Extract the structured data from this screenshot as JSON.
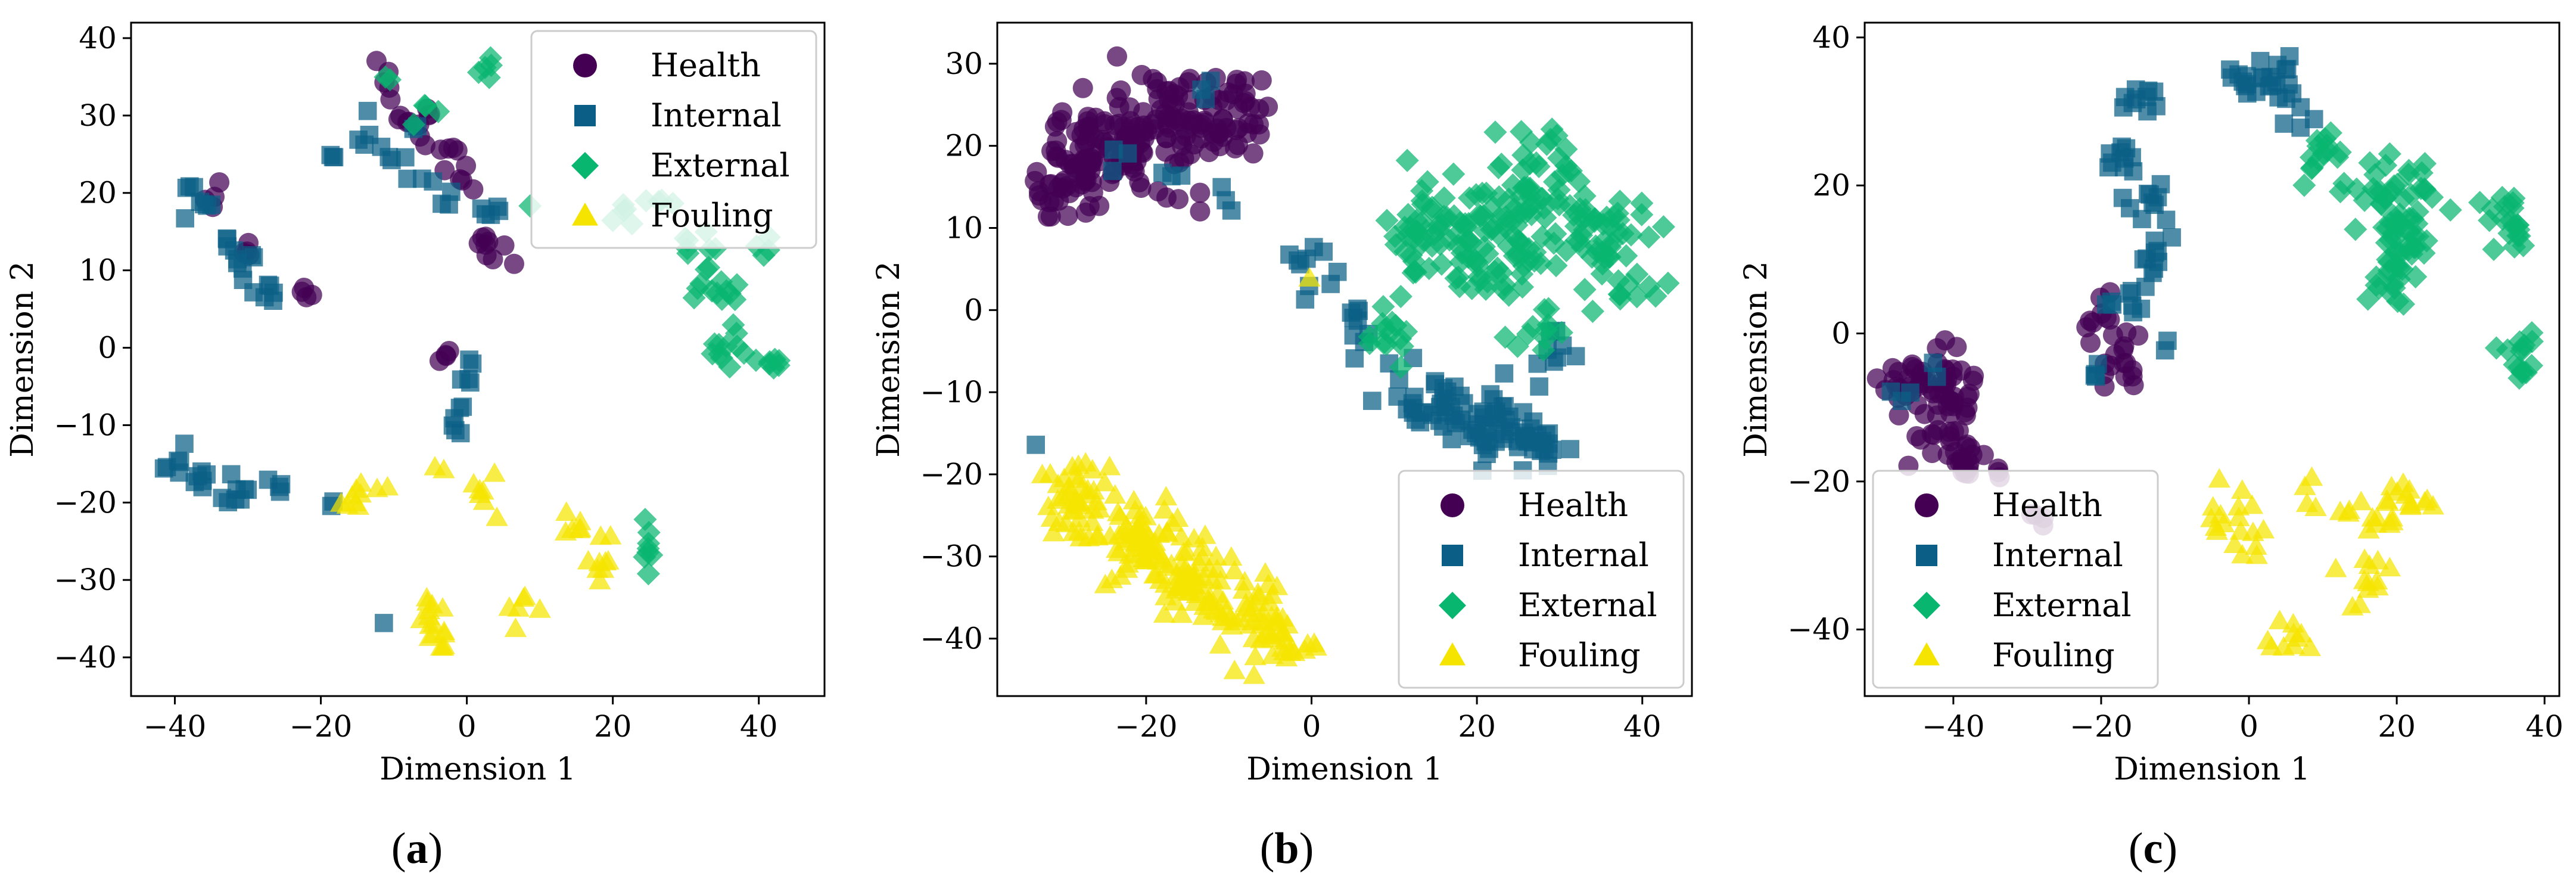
{
  "colors": {
    "Health": "#440154",
    "Internal": "#0b5f86",
    "External": "#08b670",
    "Fouling": "#f5e400"
  },
  "chart_data": [
    {
      "type": "scatter",
      "caption": {
        "open": "(",
        "letter": "a",
        "close": ")"
      },
      "xlabel": "Dimension 1",
      "ylabel": "Dimension 2",
      "xlim": [
        -46,
        49
      ],
      "ylim": [
        -45,
        42
      ],
      "xticks": [
        -40,
        -20,
        0,
        20,
        40
      ],
      "yticks": [
        -40,
        -30,
        -20,
        -10,
        0,
        10,
        20,
        30,
        40
      ],
      "legend": {
        "position": "top-right",
        "entries": [
          "Health",
          "Internal",
          "External",
          "Fouling"
        ]
      },
      "series": [
        {
          "name": "Health",
          "marker": "circle",
          "clusters": [
            [
              -35,
              20,
              0.9,
              1.0,
              4,
              2
            ],
            [
              -30,
              13,
              1.2,
              1.0,
              4,
              3
            ],
            [
              -22,
              7,
              1.2,
              0.8,
              4,
              4
            ],
            [
              -12,
              33,
              1.2,
              1.5,
              5,
              5
            ],
            [
              -7,
              29,
              1.5,
              1.5,
              10,
              6
            ],
            [
              -3,
              26,
              1.2,
              1.5,
              5,
              7
            ],
            [
              0,
              22,
              1.0,
              1.0,
              4,
              8
            ],
            [
              2,
              14,
              1.0,
              1.0,
              5,
              9
            ],
            [
              4,
              11,
              1.2,
              1.0,
              4,
              10
            ],
            [
              -3,
              -1,
              0.8,
              0.6,
              4,
              11
            ]
          ]
        },
        {
          "name": "Internal",
          "marker": "square",
          "clusters": [
            [
              -37,
              19,
              1.3,
              1.2,
              8,
              21
            ],
            [
              -33,
              14,
              1.0,
              1.0,
              4,
              22
            ],
            [
              -30,
              10,
              1.0,
              1.0,
              6,
              23
            ],
            [
              -27,
              7,
              1.0,
              1.0,
              6,
              24
            ],
            [
              -18,
              24,
              0.8,
              0.8,
              3,
              25
            ],
            [
              -14,
              27,
              1.0,
              1.2,
              5,
              26
            ],
            [
              -8,
              26,
              1.2,
              2.0,
              6,
              27
            ],
            [
              -3,
              22,
              1.2,
              1.5,
              5,
              28
            ],
            [
              3,
              18,
              1.0,
              1.0,
              5,
              29
            ],
            [
              0,
              -3,
              0.6,
              1.5,
              5,
              30
            ],
            [
              -1,
              -9,
              0.6,
              1.5,
              6,
              31
            ],
            [
              -40,
              -15,
              1.0,
              1.0,
              6,
              32
            ],
            [
              -36,
              -18,
              1.2,
              1.2,
              6,
              33
            ],
            [
              -31,
              -19,
              1.5,
              1.2,
              8,
              34
            ],
            [
              -26,
              -18,
              1.0,
              1.2,
              4,
              35
            ],
            [
              -18,
              -20,
              0.5,
              0.5,
              2,
              36
            ],
            [
              -11,
              -35,
              0.3,
              0.3,
              1,
              37
            ]
          ]
        },
        {
          "name": "External",
          "marker": "diamond",
          "clusters": [
            [
              -11,
              35,
              0.5,
              0.5,
              2,
              41
            ],
            [
              3,
              36,
              1.0,
              1.0,
              5,
              42
            ],
            [
              -5,
              30,
              1.0,
              1.5,
              4,
              43
            ],
            [
              8,
              18,
              0.5,
              0.5,
              1,
              44
            ],
            [
              22,
              17,
              1.5,
              1.0,
              5,
              45
            ],
            [
              27,
              19,
              1.5,
              1.0,
              4,
              46
            ],
            [
              32,
              13,
              1.5,
              1.5,
              8,
              47
            ],
            [
              35,
              8,
              2.5,
              1.5,
              12,
              48
            ],
            [
              36,
              2,
              1.5,
              1.5,
              6,
              49
            ],
            [
              35,
              -1,
              1.5,
              1.0,
              5,
              50
            ],
            [
              40,
              12,
              1.0,
              1.0,
              4,
              51
            ],
            [
              41,
              -2,
              2.0,
              0.5,
              7,
              52
            ],
            [
              25,
              -26,
              0.6,
              2.5,
              8,
              53
            ]
          ]
        },
        {
          "name": "Fouling",
          "marker": "triangle",
          "clusters": [
            [
              -14,
              -19,
              2.0,
              1.2,
              10,
              61
            ],
            [
              -4,
              -16,
              0.5,
              0.4,
              2,
              62
            ],
            [
              3,
              -19,
              1.5,
              1.2,
              7,
              63
            ],
            [
              -6,
              -34,
              1.2,
              1.8,
              10,
              64
            ],
            [
              -4,
              -38,
              1.0,
              1.2,
              6,
              65
            ],
            [
              7,
              -33,
              1.5,
              1.0,
              6,
              66
            ],
            [
              14,
              -23,
              1.2,
              1.2,
              5,
              67
            ],
            [
              18,
              -27,
              1.5,
              1.5,
              10,
              68
            ]
          ]
        }
      ]
    },
    {
      "type": "scatter",
      "caption": {
        "open": "(",
        "letter": "b",
        "close": ")"
      },
      "xlabel": "Dimension 1",
      "ylabel": "Dimension 2",
      "xlim": [
        -38,
        46
      ],
      "ylim": [
        -47,
        35
      ],
      "xticks": [
        -20,
        0,
        20,
        40
      ],
      "yticks": [
        -40,
        -30,
        -20,
        -10,
        0,
        10,
        20,
        30
      ],
      "legend": {
        "position": "bottom-right",
        "entries": [
          "Health",
          "Internal",
          "External",
          "Fouling"
        ]
      },
      "series": [
        {
          "name": "Health",
          "marker": "circle",
          "clusters": [
            [
              -27,
              19,
              3.0,
              3.5,
              70,
              101
            ],
            [
              -20,
              22,
              3.0,
              4.0,
              70,
              102
            ],
            [
              -11,
              24,
              3.0,
              3.5,
              60,
              103
            ],
            [
              -31,
              14,
              1.5,
              2.0,
              15,
              104
            ]
          ]
        },
        {
          "name": "Internal",
          "marker": "square",
          "clusters": [
            [
              -23,
              18,
              1.0,
              1.0,
              3,
              111
            ],
            [
              -18,
              17,
              1.0,
              1.0,
              3,
              112
            ],
            [
              -14,
              27,
              1.0,
              1.0,
              3,
              113
            ],
            [
              -11,
              14,
              0.8,
              1.0,
              3,
              114
            ],
            [
              -33,
              -17,
              0.3,
              0.3,
              1,
              115
            ],
            [
              0,
              5,
              1.5,
              2.5,
              10,
              116
            ],
            [
              6,
              -3,
              1.5,
              2.5,
              10,
              117
            ],
            [
              15,
              -11,
              3.5,
              2.0,
              35,
              118
            ],
            [
              23,
              -14,
              3.5,
              2.5,
              40,
              119
            ],
            [
              28,
              -17,
              2.5,
              1.5,
              15,
              120
            ],
            [
              30,
              -6,
              1.5,
              2.0,
              8,
              121
            ]
          ]
        },
        {
          "name": "External",
          "marker": "diamond",
          "clusters": [
            [
              10,
              -3,
              2.0,
              3.0,
              15,
              131
            ],
            [
              15,
              10,
              3.0,
              3.5,
              55,
              132
            ],
            [
              22,
              7,
              3.0,
              3.5,
              55,
              133
            ],
            [
              28,
              15,
              3.0,
              3.5,
              55,
              134
            ],
            [
              35,
              9,
              3.0,
              3.0,
              35,
              135
            ],
            [
              38,
              3,
              2.0,
              2.5,
              15,
              136
            ],
            [
              28,
              -3,
              2.0,
              2.0,
              10,
              137
            ]
          ]
        },
        {
          "name": "Fouling",
          "marker": "triangle",
          "clusters": [
            [
              -28,
              -23,
              2.0,
              3.0,
              45,
              141
            ],
            [
              -21,
              -28,
              2.5,
              3.0,
              55,
              142
            ],
            [
              -14,
              -33,
              2.5,
              3.0,
              55,
              143
            ],
            [
              -7,
              -38,
              2.5,
              2.5,
              45,
              144
            ],
            [
              -3,
              -41,
              1.5,
              1.5,
              15,
              145
            ],
            [
              0,
              4,
              0.2,
              0.2,
              1,
              146
            ]
          ]
        }
      ]
    },
    {
      "type": "scatter",
      "caption": {
        "open": "(",
        "letter": "c",
        "close": ")"
      },
      "xlabel": "Dimension 1",
      "ylabel": "Dimension 2",
      "xlim": [
        -52,
        42
      ],
      "ylim": [
        -49,
        42
      ],
      "xticks": [
        -40,
        -20,
        0,
        20,
        40
      ],
      "yticks": [
        -40,
        -20,
        0,
        20,
        40
      ],
      "legend": {
        "position": "bottom-left",
        "entries": [
          "Health",
          "Internal",
          "External",
          "Fouling"
        ]
      },
      "series": [
        {
          "name": "Health",
          "marker": "circle",
          "clusters": [
            [
              -45,
              -7,
              2.5,
              2.0,
              30,
              201
            ],
            [
              -40,
              -7,
              2.0,
              2.0,
              25,
              202
            ],
            [
              -42,
              -15,
              2.0,
              2.0,
              20,
              203
            ],
            [
              -37,
              -18,
              2.0,
              1.5,
              15,
              204
            ],
            [
              -20,
              1,
              1.5,
              1.5,
              10,
              205
            ],
            [
              -17,
              -4,
              1.5,
              2.0,
              15,
              206
            ],
            [
              -28,
              -24,
              1.0,
              1.0,
              4,
              207
            ]
          ]
        },
        {
          "name": "Internal",
          "marker": "square",
          "clusters": [
            [
              -47,
              -8,
              1.0,
              1.0,
              3,
              211
            ],
            [
              -42,
              -6,
              0.8,
              0.8,
              2,
              212
            ],
            [
              -15,
              32,
              1.5,
              1.0,
              10,
              213
            ],
            [
              -17,
              24,
              1.5,
              1.5,
              10,
              214
            ],
            [
              -14,
              18,
              1.5,
              2.0,
              10,
              215
            ],
            [
              -13,
              10,
              1.2,
              2.0,
              10,
              216
            ],
            [
              -16,
              4,
              1.5,
              1.5,
              8,
              217
            ],
            [
              -11,
              -1,
              0.5,
              0.5,
              2,
              218
            ],
            [
              -20,
              -5,
              1.0,
              1.0,
              4,
              219
            ],
            [
              0,
              34,
              1.5,
              1.2,
              12,
              220
            ],
            [
              4,
              35,
              1.5,
              1.5,
              10,
              221
            ],
            [
              6,
              31,
              1.0,
              1.5,
              6,
              222
            ]
          ]
        },
        {
          "name": "External",
          "marker": "diamond",
          "clusters": [
            [
              10,
              25,
              1.5,
              1.5,
              10,
              231
            ],
            [
              16,
              18,
              2.0,
              2.5,
              15,
              232
            ],
            [
              20,
              12,
              2.0,
              3.0,
              30,
              233
            ],
            [
              22,
              18,
              2.0,
              3.0,
              25,
              234
            ],
            [
              20,
              6,
              1.5,
              2.0,
              10,
              235
            ],
            [
              35,
              15,
              1.5,
              2.0,
              20,
              236
            ],
            [
              38,
              -3,
              1.5,
              1.5,
              10,
              237
            ],
            [
              37,
              -5,
              1.0,
              0.8,
              5,
              238
            ],
            [
              9,
              22,
              1.0,
              1.0,
              4,
              239
            ]
          ]
        },
        {
          "name": "Fouling",
          "marker": "triangle",
          "clusters": [
            [
              -3,
              -25,
              1.5,
              2.0,
              12,
              241
            ],
            [
              -1,
              -28,
              1.0,
              1.5,
              6,
              242
            ],
            [
              8,
              -22,
              1.0,
              1.0,
              4,
              243
            ],
            [
              16,
              -33,
              1.5,
              2.0,
              12,
              244
            ],
            [
              5,
              -41,
              2.0,
              1.5,
              10,
              245
            ],
            [
              18,
              -26,
              1.0,
              1.5,
              6,
              246
            ],
            [
              22,
              -23,
              2.5,
              1.5,
              15,
              247
            ],
            [
              13,
              -24,
              1.0,
              1.0,
              3,
              248
            ]
          ]
        }
      ]
    }
  ]
}
